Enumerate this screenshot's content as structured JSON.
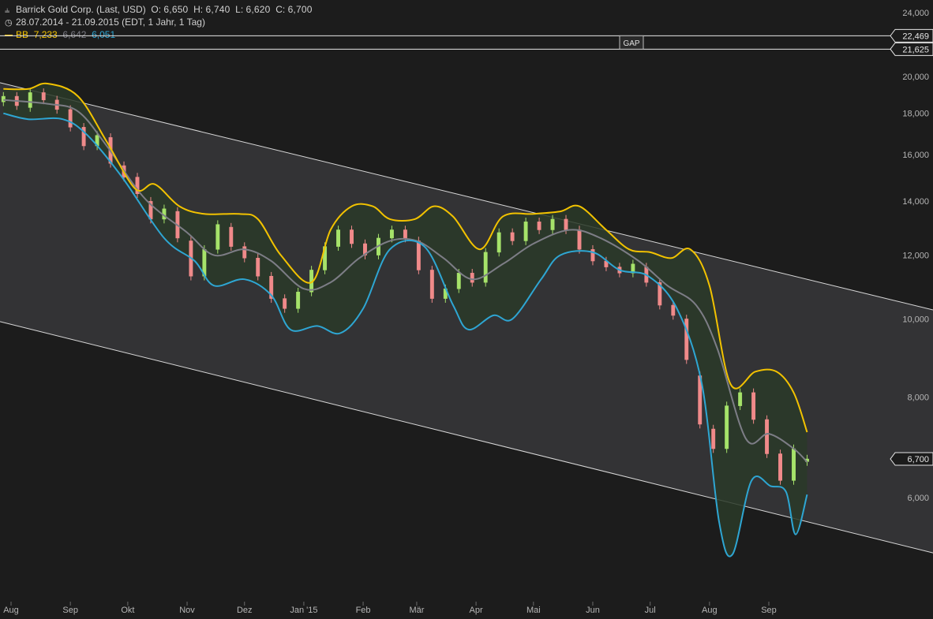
{
  "header": {
    "line1": {
      "icon": "chart-type-icon",
      "name": "Barrick Gold Corp. (Last, USD)",
      "o_label": "O:",
      "o": "6,650",
      "h_label": "H:",
      "h": "6,740",
      "l_label": "L:",
      "l": "6,620",
      "c_label": "C:",
      "c": "6,700"
    },
    "line2": {
      "icon": "clock-icon",
      "text": "28.07.2014 - 21.09.2015 (EDT, 1 Jahr, 1 Tag)"
    },
    "line3": {
      "label": "BB",
      "upper": "7,233",
      "middle": "6,642",
      "lower": "6,051"
    }
  },
  "colors": {
    "background": "#1c1c1c",
    "channel_fill": "#333335",
    "band_fill": "#2a3a28",
    "upper_band": "#f2c200",
    "middle_band": "#7d7d86",
    "lower_band": "#2ea6d3",
    "up_candle": "#a6e36a",
    "down_candle": "#f08a8a",
    "axis_text": "#b5b5b5"
  },
  "chart_data": {
    "type": "candlestick",
    "scale": "log",
    "ylim": [
      4800,
      25000
    ],
    "y_ticks": [
      "6,000",
      "8,000",
      "10,000",
      "12,000",
      "14,000",
      "16,000",
      "18,000",
      "20,000",
      "24,000"
    ],
    "y_tick_values": [
      6000,
      8000,
      10000,
      12000,
      14000,
      16000,
      18000,
      20000,
      24000
    ],
    "x_months": [
      "Aug",
      "Sep",
      "Okt",
      "Nov",
      "Dez",
      "Jan '15",
      "Feb",
      "Mär",
      "Apr",
      "Mai",
      "Jun",
      "Jul",
      "Aug",
      "Sep"
    ],
    "x_month_dates": [
      "2014-08-01",
      "2014-09-01",
      "2014-10-01",
      "2014-11-01",
      "2014-12-01",
      "2015-01-01",
      "2015-02-01",
      "2015-03-01",
      "2015-04-01",
      "2015-05-01",
      "2015-06-01",
      "2015-07-01",
      "2015-08-01",
      "2015-09-01"
    ],
    "horizontal_lines": [
      {
        "label": "22,469",
        "value": 22469
      },
      {
        "label": "21,625",
        "value": 21625
      }
    ],
    "gap_label": "GAP",
    "last_price_label": "6,700",
    "last_price": 6700,
    "channel": {
      "upper": [
        {
          "date": "2014-07-28",
          "value": 19600
        },
        {
          "date": "2015-09-21",
          "value": 11200
        }
      ],
      "lower": [
        {
          "date": "2014-07-28",
          "value": 9900
        },
        {
          "date": "2015-09-21",
          "value": 5600
        }
      ]
    },
    "bollinger": {
      "upper": [
        {
          "date": "2014-07-28",
          "value": 19300
        },
        {
          "date": "2014-08-10",
          "value": 19300
        },
        {
          "date": "2014-08-20",
          "value": 19600
        },
        {
          "date": "2014-09-05",
          "value": 18900
        },
        {
          "date": "2014-09-20",
          "value": 16600
        },
        {
          "date": "2014-10-05",
          "value": 14500
        },
        {
          "date": "2014-10-15",
          "value": 14700
        },
        {
          "date": "2014-10-28",
          "value": 13800
        },
        {
          "date": "2014-11-10",
          "value": 13500
        },
        {
          "date": "2014-11-28",
          "value": 13500
        },
        {
          "date": "2014-12-08",
          "value": 13300
        },
        {
          "date": "2014-12-20",
          "value": 12000
        },
        {
          "date": "2015-01-05",
          "value": 11100
        },
        {
          "date": "2015-01-15",
          "value": 12900
        },
        {
          "date": "2015-01-26",
          "value": 13800
        },
        {
          "date": "2015-02-06",
          "value": 13800
        },
        {
          "date": "2015-02-15",
          "value": 13300
        },
        {
          "date": "2015-02-28",
          "value": 13300
        },
        {
          "date": "2015-03-10",
          "value": 13800
        },
        {
          "date": "2015-03-20",
          "value": 13400
        },
        {
          "date": "2015-04-03",
          "value": 12200
        },
        {
          "date": "2015-04-15",
          "value": 13400
        },
        {
          "date": "2015-05-01",
          "value": 13500
        },
        {
          "date": "2015-05-15",
          "value": 13600
        },
        {
          "date": "2015-05-25",
          "value": 13800
        },
        {
          "date": "2015-06-08",
          "value": 12900
        },
        {
          "date": "2015-06-20",
          "value": 12200
        },
        {
          "date": "2015-07-01",
          "value": 12100
        },
        {
          "date": "2015-07-12",
          "value": 11900
        },
        {
          "date": "2015-07-22",
          "value": 12200
        },
        {
          "date": "2015-08-01",
          "value": 11000
        },
        {
          "date": "2015-08-12",
          "value": 8300
        },
        {
          "date": "2015-08-25",
          "value": 8600
        },
        {
          "date": "2015-09-05",
          "value": 8600
        },
        {
          "date": "2015-09-14",
          "value": 8100
        },
        {
          "date": "2015-09-21",
          "value": 7233
        }
      ],
      "middle": [
        {
          "date": "2014-07-28",
          "value": 18700
        },
        {
          "date": "2014-08-20",
          "value": 18500
        },
        {
          "date": "2014-09-05",
          "value": 18100
        },
        {
          "date": "2014-09-20",
          "value": 16400
        },
        {
          "date": "2014-10-10",
          "value": 14100
        },
        {
          "date": "2014-11-01",
          "value": 12800
        },
        {
          "date": "2014-11-15",
          "value": 12000
        },
        {
          "date": "2014-12-01",
          "value": 12200
        },
        {
          "date": "2014-12-15",
          "value": 11800
        },
        {
          "date": "2015-01-01",
          "value": 10900
        },
        {
          "date": "2015-01-15",
          "value": 11100
        },
        {
          "date": "2015-01-30",
          "value": 11900
        },
        {
          "date": "2015-02-15",
          "value": 12500
        },
        {
          "date": "2015-03-01",
          "value": 12500
        },
        {
          "date": "2015-03-15",
          "value": 11900
        },
        {
          "date": "2015-03-30",
          "value": 11200
        },
        {
          "date": "2015-04-15",
          "value": 11700
        },
        {
          "date": "2015-05-01",
          "value": 12400
        },
        {
          "date": "2015-05-20",
          "value": 12900
        },
        {
          "date": "2015-06-05",
          "value": 12600
        },
        {
          "date": "2015-06-25",
          "value": 11800
        },
        {
          "date": "2015-07-10",
          "value": 11000
        },
        {
          "date": "2015-07-25",
          "value": 10400
        },
        {
          "date": "2015-08-05",
          "value": 9200
        },
        {
          "date": "2015-08-20",
          "value": 7100
        },
        {
          "date": "2015-09-01",
          "value": 7200
        },
        {
          "date": "2015-09-14",
          "value": 6900
        },
        {
          "date": "2015-09-21",
          "value": 6642
        }
      ],
      "lower": [
        {
          "date": "2014-07-28",
          "value": 18000
        },
        {
          "date": "2014-08-10",
          "value": 17700
        },
        {
          "date": "2014-08-28",
          "value": 17700
        },
        {
          "date": "2014-09-10",
          "value": 16900
        },
        {
          "date": "2014-09-28",
          "value": 15000
        },
        {
          "date": "2014-10-20",
          "value": 12600
        },
        {
          "date": "2014-11-05",
          "value": 11800
        },
        {
          "date": "2014-11-15",
          "value": 11000
        },
        {
          "date": "2014-12-01",
          "value": 11200
        },
        {
          "date": "2014-12-15",
          "value": 10700
        },
        {
          "date": "2014-12-25",
          "value": 9700
        },
        {
          "date": "2015-01-08",
          "value": 9800
        },
        {
          "date": "2015-01-20",
          "value": 9600
        },
        {
          "date": "2015-02-01",
          "value": 10300
        },
        {
          "date": "2015-02-15",
          "value": 12200
        },
        {
          "date": "2015-03-05",
          "value": 12300
        },
        {
          "date": "2015-03-20",
          "value": 10400
        },
        {
          "date": "2015-03-28",
          "value": 9700
        },
        {
          "date": "2015-04-10",
          "value": 10100
        },
        {
          "date": "2015-04-20",
          "value": 10000
        },
        {
          "date": "2015-05-05",
          "value": 11200
        },
        {
          "date": "2015-05-15",
          "value": 12000
        },
        {
          "date": "2015-06-01",
          "value": 12100
        },
        {
          "date": "2015-06-15",
          "value": 11500
        },
        {
          "date": "2015-06-30",
          "value": 11300
        },
        {
          "date": "2015-07-15",
          "value": 10300
        },
        {
          "date": "2015-07-28",
          "value": 8300
        },
        {
          "date": "2015-08-06",
          "value": 5600
        },
        {
          "date": "2015-08-13",
          "value": 5100
        },
        {
          "date": "2015-08-23",
          "value": 6300
        },
        {
          "date": "2015-09-02",
          "value": 6200
        },
        {
          "date": "2015-09-10",
          "value": 6100
        },
        {
          "date": "2015-09-15",
          "value": 5400
        },
        {
          "date": "2015-09-21",
          "value": 6051
        }
      ]
    },
    "candles": [
      {
        "date": "2014-07-28",
        "open": 18600,
        "close": 18900
      },
      {
        "date": "2014-08-04",
        "open": 18900,
        "close": 18400
      },
      {
        "date": "2014-08-11",
        "open": 18300,
        "close": 19100
      },
      {
        "date": "2014-08-18",
        "open": 19100,
        "close": 18700
      },
      {
        "date": "2014-08-25",
        "open": 18700,
        "close": 18200
      },
      {
        "date": "2014-09-01",
        "open": 18200,
        "close": 17300
      },
      {
        "date": "2014-09-08",
        "open": 17300,
        "close": 16400
      },
      {
        "date": "2014-09-15",
        "open": 16400,
        "close": 16900
      },
      {
        "date": "2014-09-22",
        "open": 16800,
        "close": 15600
      },
      {
        "date": "2014-09-29",
        "open": 15500,
        "close": 15000
      },
      {
        "date": "2014-10-06",
        "open": 15000,
        "close": 14300
      },
      {
        "date": "2014-10-13",
        "open": 14000,
        "close": 13300
      },
      {
        "date": "2014-10-20",
        "open": 13300,
        "close": 13700
      },
      {
        "date": "2014-10-27",
        "open": 13600,
        "close": 12600
      },
      {
        "date": "2014-11-03",
        "open": 12500,
        "close": 11300
      },
      {
        "date": "2014-11-10",
        "open": 11300,
        "close": 12200
      },
      {
        "date": "2014-11-17",
        "open": 12200,
        "close": 13100
      },
      {
        "date": "2014-11-24",
        "open": 13000,
        "close": 12300
      },
      {
        "date": "2014-12-01",
        "open": 12300,
        "close": 11900
      },
      {
        "date": "2014-12-08",
        "open": 11900,
        "close": 11300
      },
      {
        "date": "2014-12-15",
        "open": 11300,
        "close": 10600
      },
      {
        "date": "2014-12-22",
        "open": 10600,
        "close": 10300
      },
      {
        "date": "2014-12-29",
        "open": 10300,
        "close": 10800
      },
      {
        "date": "2015-01-05",
        "open": 10800,
        "close": 11500
      },
      {
        "date": "2015-01-12",
        "open": 11500,
        "close": 12300
      },
      {
        "date": "2015-01-19",
        "open": 12300,
        "close": 12900
      },
      {
        "date": "2015-01-26",
        "open": 12900,
        "close": 12400
      },
      {
        "date": "2015-02-02",
        "open": 12400,
        "close": 12000
      },
      {
        "date": "2015-02-09",
        "open": 12000,
        "close": 12600
      },
      {
        "date": "2015-02-16",
        "open": 12600,
        "close": 12900
      },
      {
        "date": "2015-02-23",
        "open": 12900,
        "close": 12600
      },
      {
        "date": "2015-03-02",
        "open": 12500,
        "close": 11500
      },
      {
        "date": "2015-03-09",
        "open": 11500,
        "close": 10600
      },
      {
        "date": "2015-03-16",
        "open": 10600,
        "close": 10900
      },
      {
        "date": "2015-03-23",
        "open": 10900,
        "close": 11400
      },
      {
        "date": "2015-03-30",
        "open": 11400,
        "close": 11100
      },
      {
        "date": "2015-04-06",
        "open": 11100,
        "close": 12100
      },
      {
        "date": "2015-04-13",
        "open": 12100,
        "close": 12800
      },
      {
        "date": "2015-04-20",
        "open": 12800,
        "close": 12500
      },
      {
        "date": "2015-04-27",
        "open": 12500,
        "close": 13200
      },
      {
        "date": "2015-05-04",
        "open": 13200,
        "close": 12900
      },
      {
        "date": "2015-05-11",
        "open": 12900,
        "close": 13300
      },
      {
        "date": "2015-05-18",
        "open": 13300,
        "close": 12900
      },
      {
        "date": "2015-05-25",
        "open": 12900,
        "close": 12200
      },
      {
        "date": "2015-06-01",
        "open": 12200,
        "close": 11800
      },
      {
        "date": "2015-06-08",
        "open": 11800,
        "close": 11600
      },
      {
        "date": "2015-06-15",
        "open": 11600,
        "close": 11400
      },
      {
        "date": "2015-06-22",
        "open": 11400,
        "close": 11700
      },
      {
        "date": "2015-06-29",
        "open": 11600,
        "close": 11100
      },
      {
        "date": "2015-07-06",
        "open": 11100,
        "close": 10400
      },
      {
        "date": "2015-07-13",
        "open": 10400,
        "close": 10100
      },
      {
        "date": "2015-07-20",
        "open": 10000,
        "close": 8900
      },
      {
        "date": "2015-07-27",
        "open": 8500,
        "close": 7400
      },
      {
        "date": "2015-08-03",
        "open": 7300,
        "close": 6900
      },
      {
        "date": "2015-08-10",
        "open": 6900,
        "close": 7800
      },
      {
        "date": "2015-08-17",
        "open": 7800,
        "close": 8100
      },
      {
        "date": "2015-08-24",
        "open": 8100,
        "close": 7500
      },
      {
        "date": "2015-08-31",
        "open": 7500,
        "close": 6800
      },
      {
        "date": "2015-09-07",
        "open": 6800,
        "close": 6300
      },
      {
        "date": "2015-09-14",
        "open": 6300,
        "close": 6900
      },
      {
        "date": "2015-09-21",
        "open": 6650,
        "close": 6700
      }
    ]
  }
}
